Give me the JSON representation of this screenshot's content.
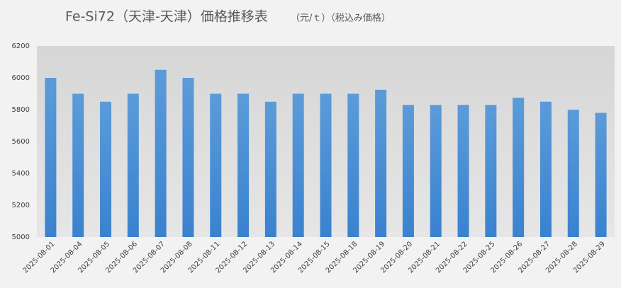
{
  "chart_data": {
    "type": "bar",
    "title": "Fe-Si72（天津-天津）価格推移表",
    "subtitle": "（元/ｔ）（税込み価格）",
    "categories": [
      "2025-08-01",
      "2025-08-04",
      "2025-08-05",
      "2025-08-06",
      "2025-08-07",
      "2025-08-08",
      "2025-08-11",
      "2025-08-12",
      "2025-08-13",
      "2025-08-14",
      "2025-08-15",
      "2025-08-18",
      "2025-08-19",
      "2025-08-20",
      "2025-08-21",
      "2025-08-22",
      "2025-08-25",
      "2025-08-26",
      "2025-08-27",
      "2025-08-28",
      "2025-08-29"
    ],
    "values": [
      6000,
      5900,
      5850,
      5900,
      6050,
      6000,
      5900,
      5900,
      5850,
      5900,
      5900,
      5900,
      5925,
      5830,
      5830,
      5830,
      5830,
      5875,
      5850,
      5800,
      5780
    ],
    "color": "#4a90d9",
    "ylim": [
      5000,
      6200
    ],
    "yticks": [
      5000,
      5200,
      5400,
      5600,
      5800,
      6000,
      6200
    ],
    "grid": false
  }
}
